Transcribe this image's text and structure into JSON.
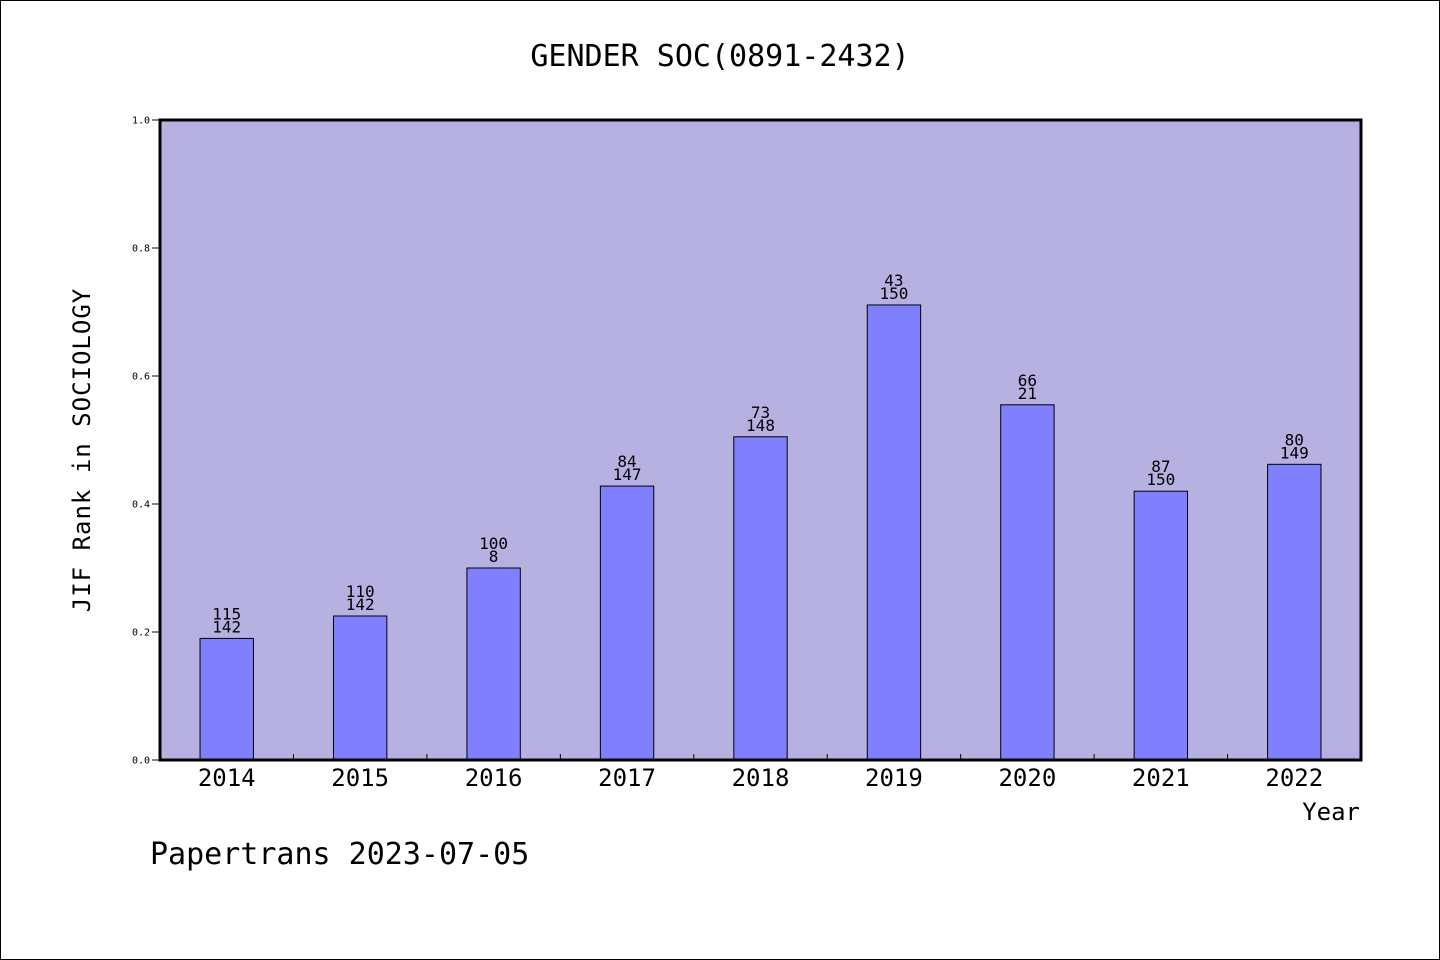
{
  "chart_data": {
    "type": "bar",
    "title": "GENDER SOC(0891-2432)",
    "xlabel": "Year",
    "ylabel": "JIF Rank in SOCIOLOGY",
    "categories": [
      "2014",
      "2015",
      "2016",
      "2017",
      "2018",
      "2019",
      "2020",
      "2021",
      "2022"
    ],
    "values": [
      0.19,
      0.225,
      0.3,
      0.428,
      0.505,
      0.711,
      0.555,
      0.42,
      0.462
    ],
    "rank_labels": [
      "115",
      "110",
      "100",
      "84",
      "73",
      "43",
      "66",
      "87",
      "80"
    ],
    "total_labels": [
      "142",
      "142",
      "8",
      "147",
      "148",
      "150",
      "21",
      "150",
      "149"
    ],
    "ylim": [
      0,
      1.0
    ],
    "yticks": [
      "0.0",
      "0.2",
      "0.4",
      "0.6",
      "0.8",
      "1.0"
    ],
    "grid": false,
    "legend": "none",
    "colors": {
      "plot_background": "#b7b1e2",
      "bar_fill": "#8080ff",
      "bar_stroke": "#000000"
    }
  },
  "footer": "Papertrans 2023-07-05"
}
